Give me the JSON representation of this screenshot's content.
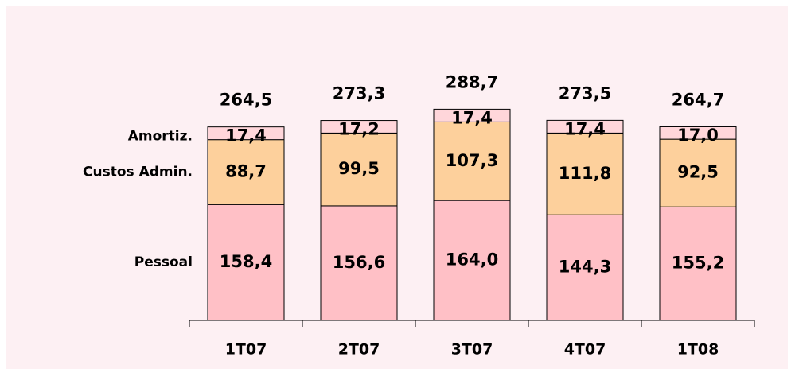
{
  "chart_data": {
    "type": "stacked_bar",
    "categories": [
      "1T07",
      "2T07",
      "3T07",
      "4T07",
      "1T08"
    ],
    "series": [
      {
        "name": "Pessoal",
        "color": "#ffc0c6",
        "values": [
          158.4,
          156.6,
          164.0,
          144.3,
          155.2
        ],
        "value_labels": [
          "158,4",
          "156,6",
          "164,0",
          "144,3",
          "155,2"
        ]
      },
      {
        "name": "Custos Admin.",
        "color": "#fdd09c",
        "values": [
          88.7,
          99.5,
          107.3,
          111.8,
          92.5
        ],
        "value_labels": [
          "88,7",
          "99,5",
          "107,3",
          "111,8",
          "92,5"
        ]
      },
      {
        "name": "Amortiz.",
        "color": "#ffd6da",
        "values": [
          17.4,
          17.2,
          17.4,
          17.4,
          17.0
        ],
        "value_labels": [
          "17,4",
          "17,2",
          "17,4",
          "17,4",
          "17,0"
        ]
      }
    ],
    "totals": [
      264.5,
      273.3,
      288.7,
      273.5,
      264.7
    ],
    "total_labels": [
      "264,5",
      "273,3",
      "288,7",
      "273,5",
      "264,7"
    ],
    "ylim": [
      0,
      300
    ]
  }
}
